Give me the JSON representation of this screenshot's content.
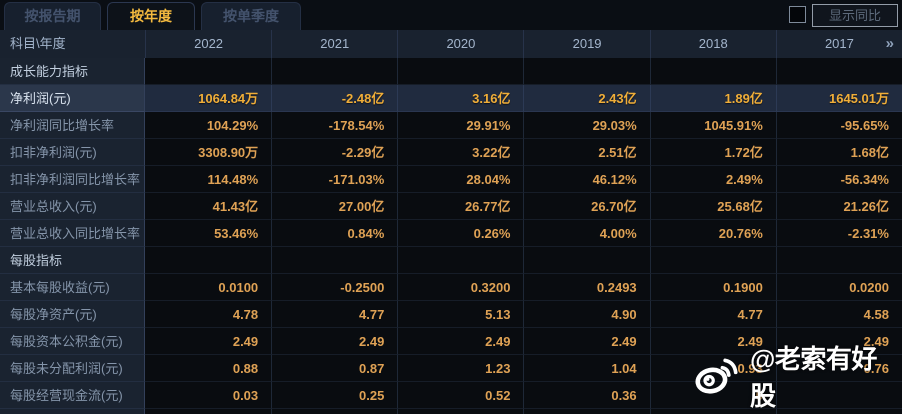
{
  "tabs": [
    {
      "label": "按报告期",
      "active": false
    },
    {
      "label": "按年度",
      "active": true
    },
    {
      "label": "按单季度",
      "active": false
    }
  ],
  "controls": {
    "show_yoy_label": "显示同比",
    "checkbox_checked": false
  },
  "table": {
    "corner_label": "科目\\年度",
    "years": [
      "2022",
      "2021",
      "2020",
      "2019",
      "2018",
      "2017"
    ],
    "more_label": "»",
    "rows": [
      {
        "label": "成长能力指标",
        "type": "section",
        "values": [
          "",
          "",
          "",
          "",
          "",
          ""
        ]
      },
      {
        "label": "净利润(元)",
        "type": "highlight",
        "values": [
          "1064.84万",
          "-2.48亿",
          "3.16亿",
          "2.43亿",
          "1.89亿",
          "1645.01万"
        ]
      },
      {
        "label": "净利润同比增长率",
        "type": "data",
        "values": [
          "104.29%",
          "-178.54%",
          "29.91%",
          "29.03%",
          "1045.91%",
          "-95.65%"
        ]
      },
      {
        "label": "扣非净利润(元)",
        "type": "data",
        "values": [
          "3308.90万",
          "-2.29亿",
          "3.22亿",
          "2.51亿",
          "1.72亿",
          "1.68亿"
        ]
      },
      {
        "label": "扣非净利润同比增长率",
        "type": "data",
        "values": [
          "114.48%",
          "-171.03%",
          "28.04%",
          "46.12%",
          "2.49%",
          "-56.34%"
        ]
      },
      {
        "label": "营业总收入(元)",
        "type": "data",
        "values": [
          "41.43亿",
          "27.00亿",
          "26.77亿",
          "26.70亿",
          "25.68亿",
          "21.26亿"
        ]
      },
      {
        "label": "营业总收入同比增长率",
        "type": "data",
        "values": [
          "53.46%",
          "0.84%",
          "0.26%",
          "4.00%",
          "20.76%",
          "-2.31%"
        ]
      },
      {
        "label": "每股指标",
        "type": "section",
        "values": [
          "",
          "",
          "",
          "",
          "",
          ""
        ]
      },
      {
        "label": "基本每股收益(元)",
        "type": "data",
        "values": [
          "0.0100",
          "-0.2500",
          "0.3200",
          "0.2493",
          "0.1900",
          "0.0200"
        ]
      },
      {
        "label": "每股净资产(元)",
        "type": "data",
        "values": [
          "4.78",
          "4.77",
          "5.13",
          "4.90",
          "4.77",
          "4.58"
        ]
      },
      {
        "label": "每股资本公积金(元)",
        "type": "data",
        "values": [
          "2.49",
          "2.49",
          "2.49",
          "2.49",
          "2.49",
          "2.49"
        ]
      },
      {
        "label": "每股未分配利润(元)",
        "type": "data",
        "values": [
          "0.88",
          "0.87",
          "1.23",
          "1.04",
          "0.93",
          "0.76"
        ]
      },
      {
        "label": "每股经营现金流(元)",
        "type": "data",
        "values": [
          "0.03",
          "0.25",
          "0.52",
          "0.36",
          "0",
          ""
        ]
      }
    ]
  },
  "watermark": {
    "text": "@老索有好股",
    "icon": "weibo-logo"
  },
  "colors": {
    "accent_gold": "#f4ba3f",
    "value_orange": "#dfa255",
    "highlight_row_bg": "#202b3f",
    "label_col_bg": "#1a2330",
    "header_bg": "#19222f",
    "page_bg": "#0a0e14"
  }
}
